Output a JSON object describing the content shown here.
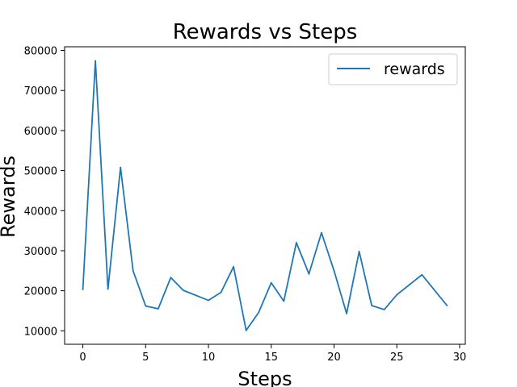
{
  "chart_data": {
    "type": "line",
    "title": "Rewards vs Steps",
    "xlabel": "Steps",
    "ylabel": "Rewards",
    "xlim": [
      -1.45,
      30.45
    ],
    "ylim": [
      6640,
      80920
    ],
    "xticks": [
      0,
      5,
      10,
      15,
      20,
      25,
      30
    ],
    "yticks": [
      10000,
      20000,
      30000,
      40000,
      50000,
      60000,
      70000,
      80000
    ],
    "xtick_labels": [
      "0",
      "5",
      "10",
      "15",
      "20",
      "25",
      "30"
    ],
    "ytick_labels": [
      "10000",
      "20000",
      "30000",
      "40000",
      "50000",
      "60000",
      "70000",
      "80000"
    ],
    "grid": false,
    "legend_placement": "top-right",
    "series": [
      {
        "name": "rewards",
        "color": "#1f77b4",
        "x": [
          0,
          1,
          2,
          3,
          4,
          5,
          6,
          7,
          8,
          10,
          11,
          12,
          13,
          14,
          15,
          16,
          17,
          18,
          19,
          20,
          21,
          22,
          23,
          24,
          25,
          27,
          29
        ],
        "values": [
          20300,
          77400,
          20400,
          50800,
          25000,
          16200,
          15500,
          23300,
          20100,
          17600,
          19600,
          26000,
          10100,
          14600,
          22000,
          17400,
          32000,
          24200,
          34500,
          25000,
          14300,
          29800,
          16300,
          15300,
          19000,
          24000,
          16300
        ]
      }
    ]
  }
}
